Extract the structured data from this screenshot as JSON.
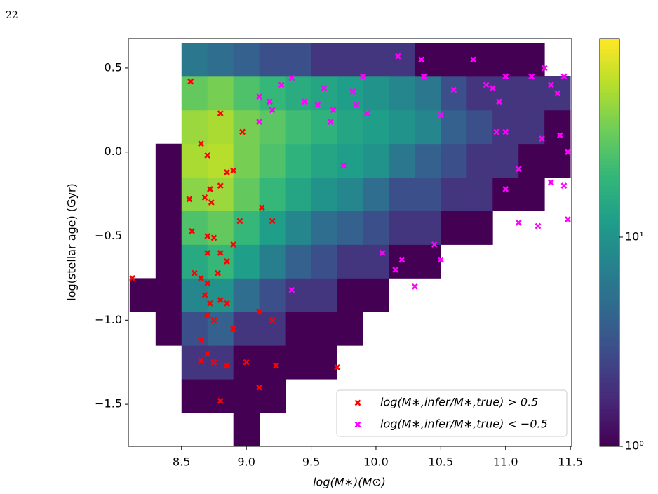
{
  "page_number": "22",
  "chart_data": {
    "type": "hist2d_scatter",
    "xlabel": "log(M∗)(M⊙)",
    "ylabel": "log(stellar age) (Gyr)",
    "xlim": [
      8.09,
      11.51
    ],
    "ylim": [
      -1.75,
      0.675
    ],
    "xticks": [
      8.5,
      {
        "value": 9,
        "label": "9.0"
      },
      9.5,
      {
        "value": 10,
        "label": "10.0"
      },
      10.5,
      {
        "value": 11,
        "label": "11.0"
      },
      11.5
    ],
    "yticks": [
      0.5,
      {
        "value": 0,
        "label": "0.0"
      },
      {
        "value": -0.5,
        "label": "−0.5"
      },
      {
        "value": -1,
        "label": "−1.0"
      },
      {
        "value": -1.5,
        "label": "−1.5"
      }
    ],
    "colormap": "viridis",
    "log_color": true,
    "clim": [
      1,
      89
    ],
    "cticks": [
      {
        "value": 1,
        "label": "10⁰"
      },
      {
        "value": 10,
        "label": "10¹"
      }
    ],
    "bins_x": [
      8.1,
      8.3,
      8.5,
      8.7,
      8.9,
      9.1,
      9.3,
      9.5,
      9.7,
      9.9,
      10.1,
      10.3,
      10.5,
      10.7,
      10.9,
      11.1,
      11.3,
      11.5
    ],
    "bins_y": [
      -1.75,
      -1.55,
      -1.35,
      -1.15,
      -0.95,
      -0.75,
      -0.55,
      -0.35,
      -0.15,
      0.05,
      0.25,
      0.45,
      0.65
    ],
    "counts": [
      [
        null,
        null,
        null,
        null,
        1,
        null,
        null,
        null,
        null,
        null,
        null,
        null,
        null,
        null,
        null,
        null,
        null
      ],
      [
        null,
        null,
        1,
        1,
        1,
        1,
        null,
        null,
        null,
        null,
        null,
        null,
        null,
        null,
        null,
        null,
        null
      ],
      [
        null,
        null,
        2,
        2,
        1,
        1,
        1,
        1,
        null,
        null,
        null,
        null,
        null,
        null,
        null,
        null,
        null
      ],
      [
        null,
        1,
        3,
        4,
        2,
        2,
        1,
        1,
        1,
        null,
        null,
        null,
        null,
        null,
        null,
        null,
        null
      ],
      [
        1,
        1,
        8,
        10,
        5,
        3,
        2,
        2,
        1,
        1,
        null,
        null,
        null,
        null,
        null,
        null,
        null
      ],
      [
        null,
        1,
        15,
        20,
        12,
        7,
        4,
        3,
        2,
        2,
        1,
        1,
        null,
        null,
        null,
        null,
        null
      ],
      [
        null,
        1,
        25,
        30,
        20,
        12,
        8,
        5,
        4,
        3,
        2,
        2,
        1,
        1,
        null,
        null,
        null
      ],
      [
        null,
        1,
        40,
        45,
        30,
        20,
        14,
        10,
        8,
        5,
        3,
        3,
        2,
        2,
        1,
        1,
        null
      ],
      [
        null,
        1,
        50,
        55,
        35,
        25,
        18,
        14,
        12,
        10,
        6,
        4,
        3,
        2,
        2,
        1,
        1
      ],
      [
        null,
        null,
        45,
        50,
        35,
        28,
        22,
        18,
        14,
        12,
        10,
        8,
        4,
        3,
        2,
        2,
        1
      ],
      [
        null,
        null,
        30,
        35,
        25,
        20,
        16,
        14,
        12,
        10,
        8,
        6,
        3,
        2,
        2,
        2,
        2
      ],
      [
        null,
        null,
        6,
        5,
        4,
        3,
        3,
        2,
        2,
        2,
        2,
        1,
        1,
        1,
        1,
        1,
        null
      ]
    ],
    "legend": "lower right",
    "series": [
      {
        "name": "log(M∗,infer/M∗,true) > 0.5",
        "color": "#ff0000",
        "x": [
          8.57,
          8.8,
          8.97,
          8.65,
          8.7,
          8.85,
          8.9,
          8.72,
          8.68,
          8.73,
          8.8,
          8.56,
          8.95,
          9.12,
          9.2,
          8.58,
          8.7,
          8.75,
          8.9,
          8.7,
          8.8,
          8.85,
          8.6,
          8.65,
          8.7,
          8.78,
          8.68,
          8.72,
          8.8,
          8.85,
          8.7,
          8.75,
          8.9,
          9.1,
          9.2,
          8.65,
          8.7,
          8.75,
          8.85,
          9.0,
          9.1,
          9.23,
          9.7,
          8.8,
          8.12,
          8.65
        ],
        "y": [
          0.42,
          0.23,
          0.12,
          0.05,
          -0.02,
          -0.12,
          -0.11,
          -0.22,
          -0.27,
          -0.3,
          -0.2,
          -0.28,
          -0.41,
          -0.33,
          -0.41,
          -0.47,
          -0.5,
          -0.51,
          -0.55,
          -0.6,
          -0.6,
          -0.65,
          -0.72,
          -0.75,
          -0.78,
          -0.72,
          -0.85,
          -0.9,
          -0.88,
          -0.9,
          -0.97,
          -1.0,
          -1.05,
          -0.95,
          -1.0,
          -1.12,
          -1.2,
          -1.25,
          -1.27,
          -1.25,
          -1.4,
          -1.27,
          -1.28,
          -1.48,
          -0.75,
          -1.24
        ]
      },
      {
        "name": "log(M∗,infer/M∗,true) < −0.5",
        "color": "#ff00ff",
        "x": [
          9.1,
          9.18,
          9.2,
          9.27,
          9.35,
          9.45,
          9.55,
          9.67,
          9.65,
          9.6,
          9.82,
          9.85,
          9.93,
          9.9,
          9.1,
          10.17,
          10.35,
          10.37,
          10.5,
          10.6,
          10.75,
          10.85,
          10.9,
          10.95,
          10.93,
          11.0,
          11.0,
          11.2,
          11.3,
          11.35,
          11.4,
          11.45,
          11.28,
          11.42,
          11.48,
          11.1,
          11.35,
          11.45,
          11.48,
          11.25,
          11.1,
          9.75,
          10.05,
          10.15,
          10.3,
          10.45,
          10.5,
          10.2,
          9.35,
          11.0
        ],
        "y": [
          0.33,
          0.3,
          0.25,
          0.4,
          0.44,
          0.3,
          0.28,
          0.25,
          0.18,
          0.38,
          0.36,
          0.28,
          0.23,
          0.45,
          0.18,
          0.57,
          0.55,
          0.45,
          0.22,
          0.37,
          0.55,
          0.4,
          0.38,
          0.3,
          0.12,
          0.12,
          0.45,
          0.45,
          0.5,
          0.4,
          0.35,
          0.45,
          0.08,
          0.1,
          0.0,
          -0.1,
          -0.18,
          -0.2,
          -0.4,
          -0.44,
          -0.42,
          -0.08,
          -0.6,
          -0.7,
          -0.8,
          -0.55,
          -0.64,
          -0.64,
          -0.82,
          -0.22
        ]
      }
    ]
  }
}
